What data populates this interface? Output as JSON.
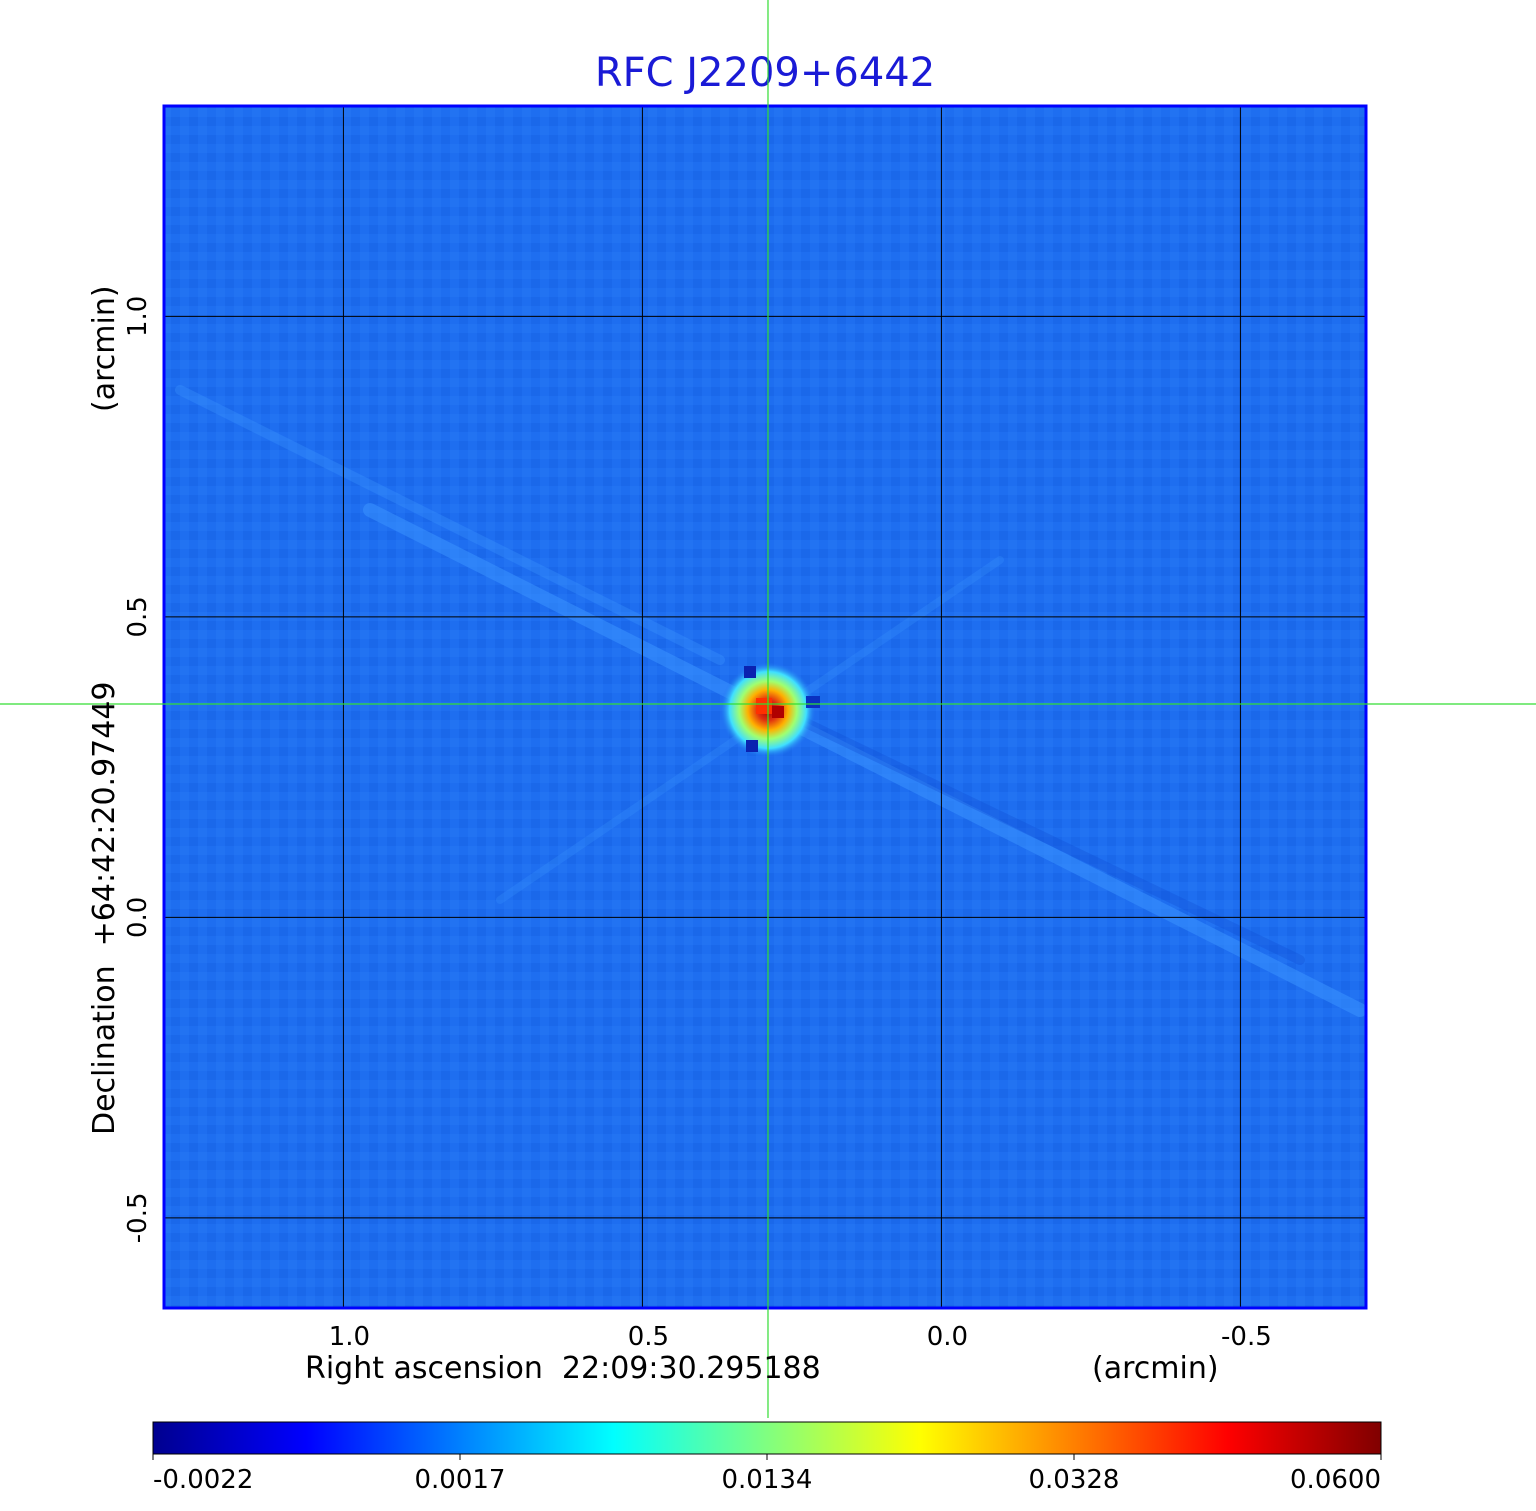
{
  "chart_data": {
    "type": "heatmap",
    "title": "RFC J2209+6442",
    "xlabel": "Right ascension  22:09:30.295188",
    "xlabel_unit": "(arcmin)",
    "ylabel": "Declination  +64:42:20.97449",
    "ylabel_unit": "(arcmin)",
    "x_ticks": [
      1.0,
      0.5,
      0.0,
      -0.5
    ],
    "x_tick_labels": [
      "1.0",
      "0.5",
      "0.0",
      "-0.5"
    ],
    "y_ticks": [
      1.0,
      0.5,
      0.0,
      -0.5
    ],
    "y_tick_labels": [
      "1.0",
      "0.5",
      "0.0",
      "-0.5"
    ],
    "xlim": [
      1.3,
      -0.71
    ],
    "ylim": [
      -0.65,
      1.35
    ],
    "grid": true,
    "crosshair": {
      "x": 0.29,
      "y": 0.355
    },
    "peak": {
      "x": 0.29,
      "y": 0.355,
      "value": 0.06
    },
    "background_value": -0.0005,
    "colorbar": {
      "orientation": "horizontal",
      "position": "bottom",
      "ticks": [
        -0.0022,
        0.0017,
        0.0134,
        0.0328,
        0.06
      ],
      "tick_labels": [
        "-0.0022",
        "0.0017",
        "0.0134",
        "0.0328",
        "0.0600"
      ],
      "colormap": [
        "#00008f",
        "#0000ff",
        "#0080ff",
        "#00ffff",
        "#80ff80",
        "#ffff00",
        "#ff8000",
        "#ff0000",
        "#800000"
      ]
    },
    "colors": {
      "title": "#1a1ad6",
      "frame": "#0000ff",
      "field": "#1e6ef0",
      "grid": "#000000",
      "crosshair": "#33dd33"
    }
  }
}
